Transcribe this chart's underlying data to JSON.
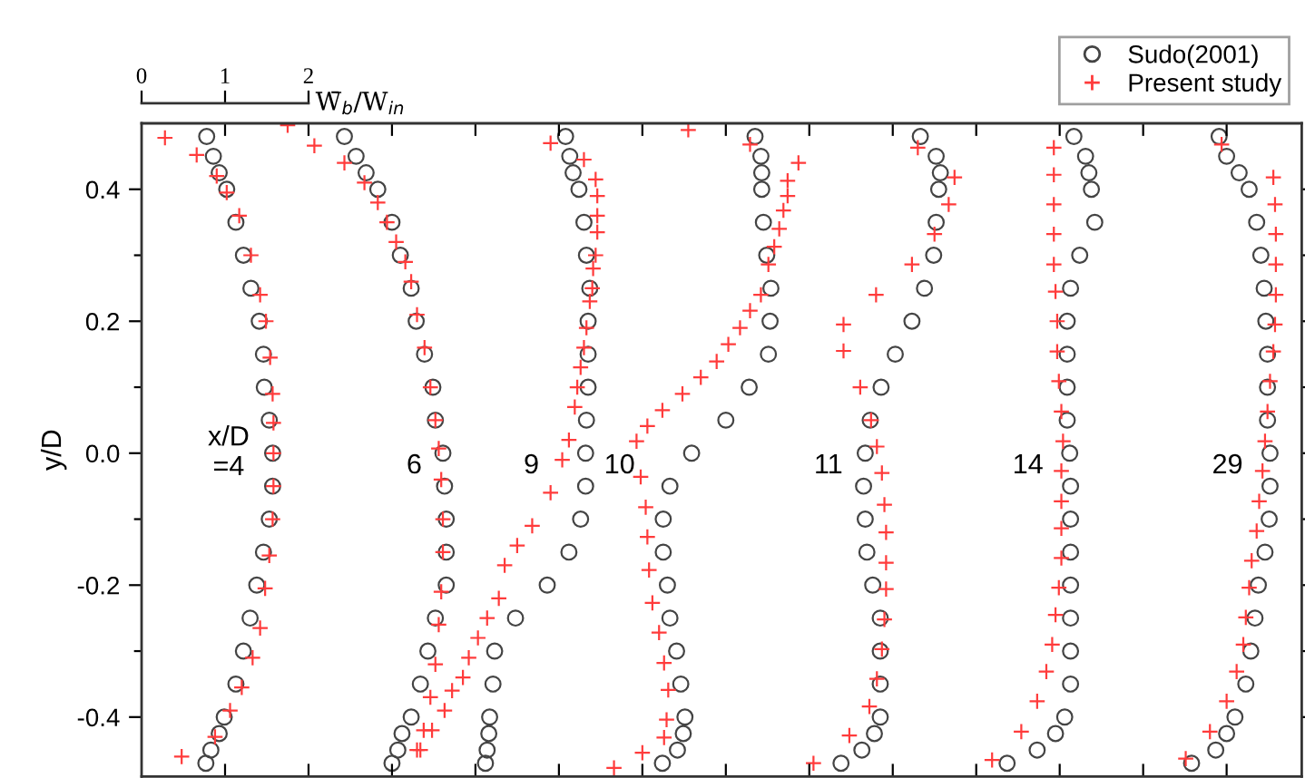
{
  "chart_data": {
    "type": "scatter",
    "ylabel": "y/D",
    "xlabel": "W̄$_{b}$/W$_{in}$",
    "xlim": [
      0,
      13.9
    ],
    "xticks": [
      0,
      1,
      2,
      {
        "value": 3,
        "label": null
      },
      {
        "value": 4,
        "label": null
      },
      {
        "value": 5,
        "label": null
      },
      {
        "value": 6,
        "label": null
      },
      {
        "value": 7,
        "label": null
      },
      {
        "value": 8,
        "label": null
      },
      {
        "value": 9,
        "label": null
      },
      {
        "value": 10,
        "label": null
      },
      {
        "value": 11,
        "label": null
      },
      {
        "value": 12,
        "label": null
      },
      {
        "value": 13,
        "label": null
      }
    ],
    "ylim": [
      -0.49,
      0.5
    ],
    "yticks": [
      {
        "value": -0.4,
        "label": "-0.4"
      },
      {
        "value": -0.3,
        "label": null
      },
      {
        "value": -0.2,
        "label": "-0.2"
      },
      {
        "value": -0.1,
        "label": null
      },
      {
        "value": 0.0,
        "label": "0.0"
      },
      {
        "value": 0.1,
        "label": null
      },
      {
        "value": 0.2,
        "label": "0.2"
      },
      {
        "value": 0.3,
        "label": null
      },
      {
        "value": 0.4,
        "label": "0.4"
      }
    ],
    "grid": false,
    "legend": "top right",
    "annotations": [
      "x/D\n=4",
      "6",
      "9",
      "10",
      "11",
      "14",
      "29"
    ],
    "series": [
      {
        "name": "Sudo(2001)",
        "color": "#444444",
        "marker": "circle",
        "x": [
          0.78,
          0.86,
          0.93,
          1.02,
          1.13,
          1.22,
          1.31,
          1.41,
          1.46,
          1.47,
          1.53,
          1.57,
          1.57,
          1.53,
          1.46,
          1.38,
          1.3,
          1.22,
          1.13,
          0.99,
          0.93,
          0.83,
          0.77,
          2.43,
          2.57,
          2.69,
          2.83,
          3.0,
          3.1,
          3.23,
          3.29,
          3.39,
          3.49,
          3.52,
          3.61,
          3.63,
          3.65,
          3.65,
          3.65,
          3.52,
          3.43,
          3.34,
          3.23,
          3.12,
          3.07,
          3.0,
          5.08,
          5.13,
          5.17,
          5.24,
          5.3,
          5.33,
          5.37,
          5.35,
          5.35,
          5.35,
          5.33,
          5.32,
          5.32,
          5.26,
          5.12,
          4.86,
          4.48,
          4.23,
          4.21,
          4.17,
          4.16,
          4.14,
          4.12,
          7.35,
          7.42,
          7.43,
          7.43,
          7.45,
          7.49,
          7.54,
          7.53,
          7.51,
          7.28,
          7.0,
          6.59,
          6.33,
          6.25,
          6.25,
          6.3,
          6.33,
          6.41,
          6.46,
          6.51,
          6.49,
          6.42,
          6.24,
          9.33,
          9.52,
          9.57,
          9.55,
          9.52,
          9.49,
          9.38,
          9.23,
          9.03,
          8.86,
          8.73,
          8.67,
          8.65,
          8.67,
          8.69,
          8.76,
          8.85,
          8.85,
          8.85,
          8.85,
          8.78,
          8.63,
          8.38,
          11.17,
          11.31,
          11.35,
          11.38,
          11.42,
          11.24,
          11.13,
          11.09,
          11.09,
          11.09,
          11.09,
          11.12,
          11.13,
          11.13,
          11.13,
          11.13,
          11.13,
          11.13,
          11.13,
          11.06,
          10.95,
          10.73,
          10.37,
          12.91,
          13.0,
          13.15,
          13.27,
          13.36,
          13.41,
          13.45,
          13.47,
          13.49,
          13.49,
          13.49,
          13.52,
          13.52,
          13.51,
          13.46,
          13.38,
          13.34,
          13.29,
          13.23,
          13.1,
          13.0,
          12.87,
          12.58
        ],
        "values": [
          0.48,
          0.45,
          0.425,
          0.4,
          0.35,
          0.3,
          0.25,
          0.2,
          0.15,
          0.1,
          0.05,
          0,
          -0.05,
          -0.1,
          -0.15,
          -0.2,
          -0.25,
          -0.3,
          -0.35,
          -0.4,
          -0.425,
          -0.45,
          -0.47,
          0.48,
          0.45,
          0.425,
          0.4,
          0.35,
          0.3,
          0.25,
          0.2,
          0.15,
          0.1,
          0.05,
          0,
          -0.05,
          -0.1,
          -0.15,
          -0.2,
          -0.25,
          -0.3,
          -0.35,
          -0.4,
          -0.425,
          -0.45,
          -0.47,
          0.48,
          0.45,
          0.425,
          0.4,
          0.35,
          0.3,
          0.25,
          0.2,
          0.15,
          0.1,
          0.05,
          0,
          -0.05,
          -0.1,
          -0.15,
          -0.2,
          -0.25,
          -0.3,
          -0.35,
          -0.4,
          -0.425,
          -0.45,
          -0.47,
          0.48,
          0.45,
          0.425,
          0.4,
          0.35,
          0.3,
          0.25,
          0.2,
          0.15,
          0.1,
          0.05,
          0,
          -0.05,
          -0.1,
          -0.15,
          -0.2,
          -0.25,
          -0.3,
          -0.35,
          -0.4,
          -0.425,
          -0.45,
          -0.47,
          0.48,
          0.45,
          0.425,
          0.4,
          0.35,
          0.3,
          0.25,
          0.2,
          0.15,
          0.1,
          0.05,
          0,
          -0.05,
          -0.1,
          -0.15,
          -0.2,
          -0.25,
          -0.3,
          -0.35,
          -0.4,
          -0.425,
          -0.45,
          -0.47,
          0.48,
          0.45,
          0.425,
          0.4,
          0.35,
          0.3,
          0.25,
          0.2,
          0.15,
          0.1,
          0.05,
          0,
          -0.05,
          -0.1,
          -0.15,
          -0.2,
          -0.25,
          -0.3,
          -0.35,
          -0.4,
          -0.425,
          -0.45,
          -0.47,
          0.48,
          0.45,
          0.425,
          0.4,
          0.35,
          0.3,
          0.25,
          0.2,
          0.15,
          0.1,
          0.05,
          0,
          -0.05,
          -0.1,
          -0.15,
          -0.2,
          -0.25,
          -0.3,
          -0.35,
          -0.4,
          -0.425,
          -0.45,
          -0.47
        ]
      },
      {
        "name": "Present study",
        "color": "#ff3b3b",
        "marker": "cross",
        "x": [
          0.28,
          0.66,
          0.9,
          1.02,
          1.17,
          1.31,
          1.42,
          1.49,
          1.54,
          1.57,
          1.58,
          1.58,
          1.58,
          1.57,
          1.53,
          1.48,
          1.42,
          1.33,
          1.2,
          1.06,
          0.88,
          0.48,
          1.75,
          2.07,
          2.43,
          2.67,
          2.83,
          2.94,
          3.05,
          3.16,
          3.23,
          3.3,
          3.39,
          3.46,
          3.52,
          3.56,
          3.59,
          3.61,
          3.61,
          3.59,
          3.56,
          3.52,
          3.46,
          3.38,
          3.3,
          4.9,
          5.3,
          5.44,
          5.46,
          5.46,
          5.46,
          5.44,
          5.41,
          5.4,
          5.37,
          5.33,
          5.3,
          5.26,
          5.22,
          5.19,
          5.12,
          5.04,
          4.9,
          4.68,
          4.5,
          4.35,
          4.28,
          4.14,
          4.03,
          3.92,
          3.85,
          3.72,
          3.63,
          3.48,
          3.34,
          6.55,
          7.29,
          7.87,
          7.74,
          7.74,
          7.69,
          7.64,
          7.58,
          7.51,
          7.42,
          7.29,
          7.17,
          7.03,
          6.89,
          6.7,
          6.48,
          6.24,
          6.06,
          5.93,
          5.98,
          6.04,
          6.06,
          6.08,
          6.12,
          6.2,
          6.26,
          6.31,
          6.29,
          6.26,
          6.0,
          5.66,
          9.3,
          9.74,
          9.67,
          9.5,
          9.23,
          8.8,
          8.41,
          8.41,
          8.61,
          8.74,
          8.81,
          8.87,
          8.9,
          8.92,
          8.92,
          8.92,
          8.9,
          8.87,
          8.81,
          8.72,
          8.48,
          8.05,
          10.93,
          10.93,
          10.93,
          10.93,
          10.93,
          10.95,
          10.97,
          10.97,
          10.99,
          11.02,
          11.04,
          11.02,
          11.02,
          11.02,
          11.02,
          10.99,
          10.95,
          10.91,
          10.84,
          10.73,
          10.54,
          10.19,
          12.94,
          13.56,
          13.58,
          13.59,
          13.59,
          13.59,
          13.58,
          13.56,
          13.52,
          13.49,
          13.46,
          13.43,
          13.39,
          13.36,
          13.3,
          13.27,
          13.23,
          13.2,
          13.12,
          13.0,
          12.8,
          12.51
        ],
        "values": [
          0.478,
          0.452,
          0.42,
          0.395,
          0.36,
          0.3,
          0.24,
          0.2,
          0.145,
          0.09,
          0.046,
          0,
          -0.05,
          -0.1,
          -0.155,
          -0.205,
          -0.265,
          -0.31,
          -0.355,
          -0.39,
          -0.43,
          -0.46,
          0.497,
          0.466,
          0.44,
          0.41,
          0.38,
          0.35,
          0.32,
          0.29,
          0.26,
          0.21,
          0.16,
          0.1,
          0.05,
          0.007,
          -0.04,
          -0.1,
          -0.15,
          -0.21,
          -0.26,
          -0.32,
          -0.37,
          -0.42,
          -0.45,
          0.47,
          0.445,
          0.415,
          0.39,
          0.36,
          0.335,
          0.3,
          0.28,
          0.25,
          0.23,
          0.19,
          0.16,
          0.13,
          0.1,
          0.07,
          0.02,
          -0.01,
          -0.06,
          -0.11,
          -0.14,
          -0.17,
          -0.22,
          -0.25,
          -0.28,
          -0.31,
          -0.34,
          -0.36,
          -0.39,
          -0.42,
          -0.45,
          0.49,
          0.468,
          0.44,
          0.413,
          0.39,
          0.368,
          0.34,
          0.313,
          0.286,
          0.24,
          0.216,
          0.19,
          0.165,
          0.139,
          0.115,
          0.09,
          0.065,
          0.041,
          0.018,
          -0.036,
          -0.082,
          -0.127,
          -0.177,
          -0.227,
          -0.272,
          -0.318,
          -0.359,
          -0.404,
          -0.431,
          -0.454,
          -0.477,
          0.463,
          0.418,
          0.377,
          0.332,
          0.286,
          0.24,
          0.195,
          0.155,
          0.1,
          0.05,
          0.01,
          -0.03,
          -0.078,
          -0.12,
          -0.166,
          -0.206,
          -0.252,
          -0.297,
          -0.342,
          -0.384,
          -0.428,
          -0.47,
          0.463,
          0.422,
          0.377,
          0.332,
          0.286,
          0.245,
          0.2,
          0.154,
          0.109,
          0.063,
          0.018,
          -0.027,
          -0.073,
          -0.114,
          -0.159,
          -0.204,
          -0.245,
          -0.29,
          -0.331,
          -0.376,
          -0.422,
          -0.465,
          0.468,
          0.418,
          0.377,
          0.332,
          0.286,
          0.24,
          0.195,
          0.154,
          0.109,
          0.063,
          0.018,
          -0.027,
          -0.073,
          -0.118,
          -0.163,
          -0.204,
          -0.249,
          -0.29,
          -0.331,
          -0.376,
          -0.422,
          -0.463
        ]
      }
    ]
  }
}
